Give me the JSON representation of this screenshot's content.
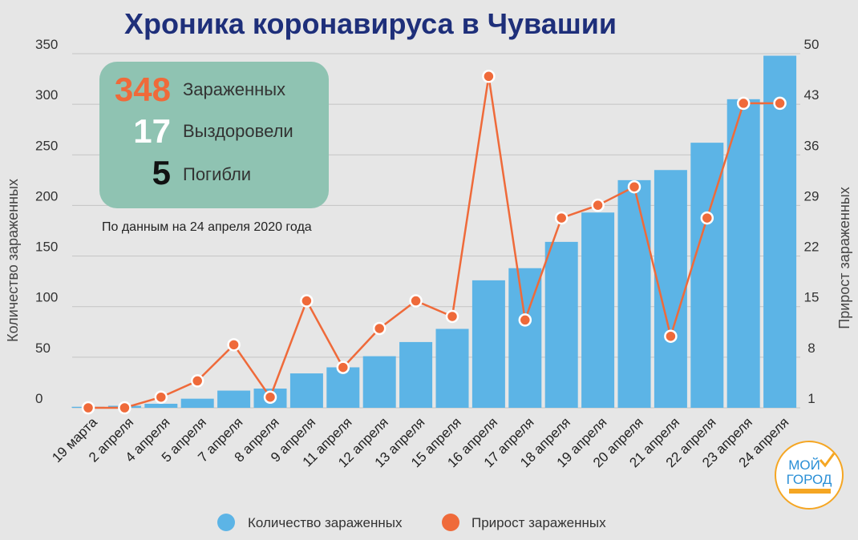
{
  "title": "Хроника коронавируса в Чувашии",
  "stats": {
    "infected_value": "348",
    "infected_label": "Зараженных",
    "recovered_value": "17",
    "recovered_label": "Выздоровели",
    "deaths_value": "5",
    "deaths_label": "Погибли",
    "note": "По данным на 24 апреля 2020 года"
  },
  "logo": {
    "line1": "МОЙ",
    "line2": "ГОРОД"
  },
  "colors": {
    "bar": "#5cb4e6",
    "line": "#ef6a3a",
    "stats_box": "#8fc3b2",
    "title": "#1e2f7a",
    "accent_number": "#ef6a3a"
  },
  "chart_data": {
    "type": "bar",
    "categories": [
      "19 марта",
      "2 апреля",
      "4 апреля",
      "5 апреля",
      "7 апреля",
      "8 апреля",
      "9 апреля",
      "11 апреля",
      "12 апреля",
      "13 апреля",
      "15 апреля",
      "16 апреля",
      "17 апреля",
      "18 апреля",
      "19 апреля",
      "20 апреля",
      "21 апреля",
      "22 апреля",
      "23 апреля",
      "24 апреля"
    ],
    "series": [
      {
        "name": "Количество зараженных",
        "type": "bar",
        "axis": "left",
        "values": [
          1,
          2,
          4,
          9,
          17,
          19,
          34,
          40,
          51,
          65,
          78,
          126,
          138,
          164,
          193,
          225,
          235,
          262,
          305,
          348
        ]
      },
      {
        "name": "Прирост зараженных",
        "type": "line",
        "axis": "right",
        "values": [
          0,
          0,
          1.5,
          3.8,
          8.9,
          1.5,
          15.1,
          5.7,
          11.2,
          15.1,
          12.9,
          46.8,
          12.4,
          26.8,
          28.6,
          31.2,
          10.1,
          26.8,
          43.0,
          43.0
        ]
      }
    ],
    "left_axis": {
      "title": "Количество зараженных",
      "ylim": [
        0,
        350
      ],
      "ticks": [
        0,
        50,
        100,
        150,
        200,
        250,
        300,
        350
      ]
    },
    "right_axis": {
      "title": "Прирост зараженных",
      "ylim": [
        0,
        50
      ],
      "ticks": [
        1,
        8,
        15,
        22,
        29,
        36,
        43,
        50
      ]
    },
    "legend": [
      "Количество зараженных",
      "Прирост зараженных"
    ]
  }
}
